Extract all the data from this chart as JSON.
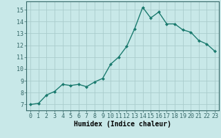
{
  "x": [
    0,
    1,
    2,
    3,
    4,
    5,
    6,
    7,
    8,
    9,
    10,
    11,
    12,
    13,
    14,
    15,
    16,
    17,
    18,
    19,
    20,
    21,
    22,
    23
  ],
  "y": [
    7.0,
    7.1,
    7.8,
    8.1,
    8.7,
    8.6,
    8.7,
    8.5,
    8.9,
    9.2,
    10.4,
    11.0,
    11.9,
    13.4,
    15.2,
    14.3,
    14.8,
    13.8,
    13.8,
    13.3,
    13.1,
    12.4,
    12.1,
    11.5
  ],
  "line_color": "#1a7a6e",
  "marker": "D",
  "marker_size": 2.0,
  "bg_color": "#c8e8e8",
  "grid_color": "#aacccc",
  "xlabel": "Humidex (Indice chaleur)",
  "xlim": [
    -0.5,
    23.5
  ],
  "ylim": [
    6.5,
    15.7
  ],
  "yticks": [
    7,
    8,
    9,
    10,
    11,
    12,
    13,
    14,
    15
  ],
  "xticks": [
    0,
    1,
    2,
    3,
    4,
    5,
    6,
    7,
    8,
    9,
    10,
    11,
    12,
    13,
    14,
    15,
    16,
    17,
    18,
    19,
    20,
    21,
    22,
    23
  ],
  "tick_fontsize": 6.0,
  "xlabel_fontsize": 7.0,
  "spine_color": "#336666",
  "line_width": 1.0
}
